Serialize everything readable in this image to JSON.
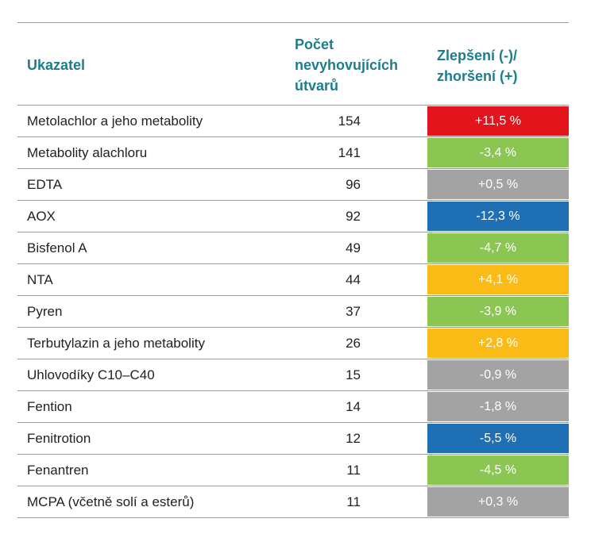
{
  "header": {
    "indicator": "Ukazatel",
    "count": [
      "Počet",
      "nevyhovujících",
      "útvarů"
    ],
    "change": [
      "Zlepšení (-)/",
      "zhoršení (+)"
    ]
  },
  "table": {
    "rows": [
      {
        "name": "Metolachlor a jeho metabolity",
        "count": "154",
        "change": "+11,5 %",
        "color": "#e3141c"
      },
      {
        "name": "Metabolity alachloru",
        "count": "141",
        "change": "-3,4 %",
        "color": "#8cc652"
      },
      {
        "name": "EDTA",
        "count": "96",
        "change": "+0,5 %",
        "color": "#a3a3a3"
      },
      {
        "name": "AOX",
        "count": "92",
        "change": "-12,3 %",
        "color": "#1f6fb5"
      },
      {
        "name": "Bisfenol A",
        "count": "49",
        "change": "-4,7 %",
        "color": "#8cc652"
      },
      {
        "name": "NTA",
        "count": "44",
        "change": "+4,1 %",
        "color": "#fbbb16"
      },
      {
        "name": "Pyren",
        "count": "37",
        "change": "-3,9 %",
        "color": "#8cc652"
      },
      {
        "name": "Terbutylazin a jeho metabolity",
        "count": "26",
        "change": "+2,8 %",
        "color": "#fbbb16"
      },
      {
        "name": "Uhlovodíky C10–C40",
        "count": "15",
        "change": "-0,9 %",
        "color": "#a3a3a3"
      },
      {
        "name": "Fention",
        "count": "14",
        "change": "-1,8 %",
        "color": "#a3a3a3"
      },
      {
        "name": "Fenitrotion",
        "count": "12",
        "change": "-5,5 %",
        "color": "#1f6fb5"
      },
      {
        "name": "Fenantren",
        "count": "11",
        "change": "-4,5 %",
        "color": "#8cc652"
      },
      {
        "name": "MCPA (včetně solí a esterů)",
        "count": "11",
        "change": "+0,3 %",
        "color": "#a3a3a3"
      }
    ]
  }
}
